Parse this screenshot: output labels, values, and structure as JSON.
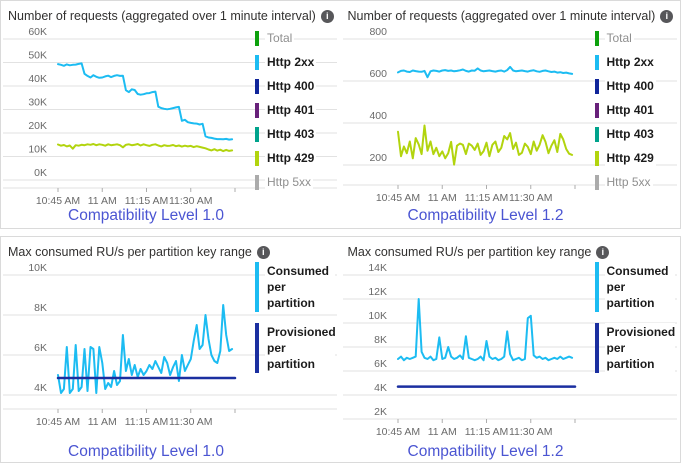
{
  "colors": {
    "grid": "#E2E2E2",
    "axis_text": "#6A6A6A",
    "title_text": "#323130",
    "caption_text": "#4B55D2",
    "panel_border": "#DADADA",
    "cyan": "#1CBCF2",
    "navy": "#1B2FA0",
    "green": "#0DA10D",
    "purple": "#68217A",
    "teal": "#00A38C",
    "chartreuse": "#B2D40E",
    "gray": "#ABABAB"
  },
  "chart_data": [
    {
      "type": "line",
      "title": "Number of requests (aggregated over 1 minute interval)",
      "title_icon": "info-icon",
      "caption": "Compatibility Level 1.0",
      "x_tick_labels": [
        "10:45 AM",
        "11 AM",
        "11:15 AM",
        "11:30 AM"
      ],
      "x_tick_minutes": [
        0,
        15,
        30,
        45,
        60
      ],
      "x_start": "10:45 AM",
      "x_interval_minutes": 1,
      "ylim": [
        0,
        60000
      ],
      "grid": true,
      "legend_position": "right",
      "y_ticks": [
        {
          "label": "60K",
          "value": 60000
        },
        {
          "label": "50K",
          "value": 50000
        },
        {
          "label": "40K",
          "value": 40000
        },
        {
          "label": "30K",
          "value": 30000
        },
        {
          "label": "20K",
          "value": 20000
        },
        {
          "label": "10K",
          "value": 10000
        },
        {
          "label": "0K",
          "value": 0
        }
      ],
      "legend": [
        {
          "label": "Total",
          "color": "#0DA10D",
          "dimmed": true
        },
        {
          "label": "Http 2xx",
          "color": "#1CBCF2",
          "dimmed": false
        },
        {
          "label": "Http 400",
          "color": "#10259A",
          "dimmed": false
        },
        {
          "label": "Http 401",
          "color": "#68217A",
          "dimmed": false
        },
        {
          "label": "Http 403",
          "color": "#00A38C",
          "dimmed": false
        },
        {
          "label": "Http 429",
          "color": "#B2D40E",
          "dimmed": false
        },
        {
          "label": "Http 5xx",
          "color": "#ABABAB",
          "dimmed": true
        }
      ],
      "series": [
        {
          "name": "Http 2xx",
          "color": "#1CBCF2",
          "values": [
            49300,
            49000,
            48600,
            49200,
            48800,
            49000,
            49100,
            49400,
            49600,
            45200,
            44300,
            43600,
            44600,
            43900,
            43500,
            43600,
            44100,
            44400,
            43800,
            44300,
            44600,
            44300,
            44400,
            38200,
            37400,
            38600,
            38300,
            36600,
            36300,
            36500,
            36900,
            37000,
            37400,
            37600,
            31200,
            30600,
            30300,
            30100,
            30300,
            30600,
            30900,
            31100,
            25200,
            25600,
            24600,
            24300,
            24100,
            24000,
            23600,
            23900,
            18600,
            18100,
            17900,
            17600,
            17400,
            17400,
            17300,
            17500,
            17200,
            17300
          ]
        },
        {
          "name": "Http 429",
          "color": "#B2D40E",
          "values": [
            15100,
            14600,
            14900,
            14300,
            14700,
            13300,
            14800,
            14600,
            15000,
            14800,
            15200,
            15000,
            15300,
            14800,
            15200,
            15000,
            14600,
            15200,
            14800,
            15000,
            15200,
            14800,
            13900,
            15000,
            15200,
            14800,
            15000,
            15300,
            14700,
            15200,
            14800,
            14500,
            15000,
            15200,
            14700,
            14300,
            14800,
            14500,
            14600,
            14900,
            14400,
            14700,
            14200,
            14600,
            14300,
            14500,
            14000,
            14400,
            14100,
            13800,
            13500,
            13000,
            12600,
            13100,
            12500,
            12900,
            12300,
            12800,
            12400,
            12600
          ]
        }
      ]
    },
    {
      "type": "line",
      "title": "Number of requests (aggregated over 1 minute interval)",
      "title_icon": "info-icon",
      "caption": "Compatibility Level 1.2",
      "x_tick_labels": [
        "10:45 AM",
        "11 AM",
        "11:15 AM",
        "11:30 AM"
      ],
      "x_tick_minutes": [
        0,
        15,
        30,
        45,
        60
      ],
      "x_start": "10:45 AM",
      "x_interval_minutes": 1,
      "ylim": [
        200,
        800
      ],
      "grid": true,
      "legend_position": "right",
      "y_ticks": [
        {
          "label": "800",
          "value": 800
        },
        {
          "label": "600",
          "value": 600
        },
        {
          "label": "400",
          "value": 400
        },
        {
          "label": "200",
          "value": 200
        }
      ],
      "legend": [
        {
          "label": "Total",
          "color": "#0DA10D",
          "dimmed": true
        },
        {
          "label": "Http 2xx",
          "color": "#1CBCF2",
          "dimmed": false
        },
        {
          "label": "Http 400",
          "color": "#10259A",
          "dimmed": false
        },
        {
          "label": "Http 401",
          "color": "#68217A",
          "dimmed": false
        },
        {
          "label": "Http 403",
          "color": "#00A38C",
          "dimmed": false
        },
        {
          "label": "Http 429",
          "color": "#B2D40E",
          "dimmed": false
        },
        {
          "label": "Http 5xx",
          "color": "#ABABAB",
          "dimmed": true
        }
      ],
      "series": [
        {
          "name": "Http 2xx",
          "color": "#1CBCF2",
          "values": [
            641,
            648,
            650,
            645,
            643,
            650,
            647,
            645,
            644,
            648,
            618,
            646,
            650,
            648,
            645,
            650,
            652,
            648,
            650,
            646,
            648,
            651,
            655,
            648,
            645,
            650,
            649,
            660,
            650,
            646,
            648,
            650,
            647,
            645,
            648,
            650,
            645,
            652,
            667,
            650,
            646,
            648,
            650,
            647,
            645,
            649,
            651,
            646,
            644,
            648,
            650,
            646,
            643,
            645,
            640,
            642,
            638,
            640,
            636,
            634
          ]
        },
        {
          "name": "Http 429",
          "color": "#B2D40E",
          "values": [
            358,
            242,
            288,
            256,
            312,
            232,
            328,
            298,
            252,
            388,
            268,
            312,
            252,
            282,
            242,
            265,
            232,
            256,
            310,
            202,
            292,
            302,
            296,
            252,
            302,
            292,
            272,
            302,
            248,
            266,
            306,
            242,
            296,
            312,
            262,
            282,
            338,
            322,
            352,
            276,
            306,
            248,
            258,
            302,
            286,
            252,
            312,
            268,
            296,
            342,
            310,
            256,
            292,
            318,
            262,
            348,
            322,
            276,
            254,
            248
          ]
        }
      ]
    },
    {
      "type": "line",
      "title": "Max consumed RU/s per partition key range",
      "title_icon": "info-icon",
      "caption": "Compatibility Level 1.0",
      "x_tick_labels": [
        "10:45 AM",
        "11 AM",
        "11:15 AM",
        "11:30 AM"
      ],
      "x_tick_minutes": [
        0,
        15,
        30,
        45,
        60
      ],
      "x_start": "10:45 AM",
      "x_interval_minutes": 1,
      "ylim": [
        4000,
        10000
      ],
      "grid": true,
      "legend_position": "right",
      "y_ticks": [
        {
          "label": "10K",
          "value": 10000
        },
        {
          "label": "8K",
          "value": 8000
        },
        {
          "label": "6K",
          "value": 6000
        },
        {
          "label": "4K",
          "value": 4000
        }
      ],
      "legend": [
        {
          "label": "Consumed per partition",
          "color": "#1CBCF2",
          "dimmed": false
        },
        {
          "label": "Provisioned per partition",
          "color": "#1B2FA0",
          "dimmed": false
        }
      ],
      "series": [
        {
          "name": "Consumed per partition",
          "color": "#1CBCF2",
          "values": [
            5000,
            4100,
            4300,
            6400,
            4100,
            4300,
            6500,
            4200,
            4400,
            6300,
            4200,
            6400,
            6300,
            4100,
            6400,
            5600,
            4300,
            4600,
            4400,
            5200,
            4500,
            4700,
            7000,
            5200,
            5800,
            5000,
            5500,
            4900,
            5300,
            5000,
            5200,
            5500,
            5300,
            5700,
            5400,
            5100,
            5900,
            5600,
            5000,
            5400,
            5700,
            4700,
            6000,
            5200,
            5500,
            5800,
            6700,
            7500,
            6300,
            6500,
            8000,
            6800,
            6000,
            5700,
            5600,
            6200,
            8500,
            7000,
            6200,
            6300
          ]
        },
        {
          "name": "Provisioned per partition",
          "color": "#1B2FA0",
          "constant_value": 4850
        }
      ]
    },
    {
      "type": "line",
      "title": "Max consumed RU/s per partition key range",
      "title_icon": "info-icon",
      "caption": "Compatibility Level 1.2",
      "x_tick_labels": [
        "10:45 AM",
        "11 AM",
        "11:15 AM",
        "11:30 AM"
      ],
      "x_tick_minutes": [
        0,
        15,
        30,
        45,
        60
      ],
      "x_start": "10:45 AM",
      "x_interval_minutes": 1,
      "ylim": [
        2000,
        14000
      ],
      "grid": true,
      "legend_position": "right",
      "y_ticks": [
        {
          "label": "14K",
          "value": 14000
        },
        {
          "label": "12K",
          "value": 12000
        },
        {
          "label": "10K",
          "value": 10000
        },
        {
          "label": "8K",
          "value": 8000
        },
        {
          "label": "6K",
          "value": 6000
        },
        {
          "label": "4K",
          "value": 4000
        },
        {
          "label": "2K",
          "value": 2000
        }
      ],
      "legend": [
        {
          "label": "Consumed per partition",
          "color": "#1CBCF2",
          "dimmed": false
        },
        {
          "label": "Provisioned per partition",
          "color": "#1B2FA0",
          "dimmed": false
        }
      ],
      "series": [
        {
          "name": "Consumed per partition",
          "color": "#1CBCF2",
          "values": [
            7000,
            7200,
            6900,
            7100,
            7000,
            7100,
            7200,
            12000,
            7600,
            7100,
            7000,
            7200,
            6900,
            7000,
            8800,
            7000,
            7100,
            8000,
            7200,
            7000,
            7100,
            7300,
            7000,
            8900,
            7100,
            7000,
            6900,
            7000,
            7200,
            6900,
            8500,
            7200,
            7000,
            7100,
            6900,
            7000,
            7200,
            9300,
            7400,
            6900,
            7000,
            7100,
            6900,
            7000,
            10400,
            10600,
            7300,
            7100,
            7200,
            7000,
            7100,
            6900,
            7000,
            7100,
            7000,
            7200,
            7000,
            7100,
            7200,
            7100
          ]
        },
        {
          "name": "Provisioned per partition",
          "color": "#1B2FA0",
          "constant_value": 4700
        }
      ]
    }
  ]
}
